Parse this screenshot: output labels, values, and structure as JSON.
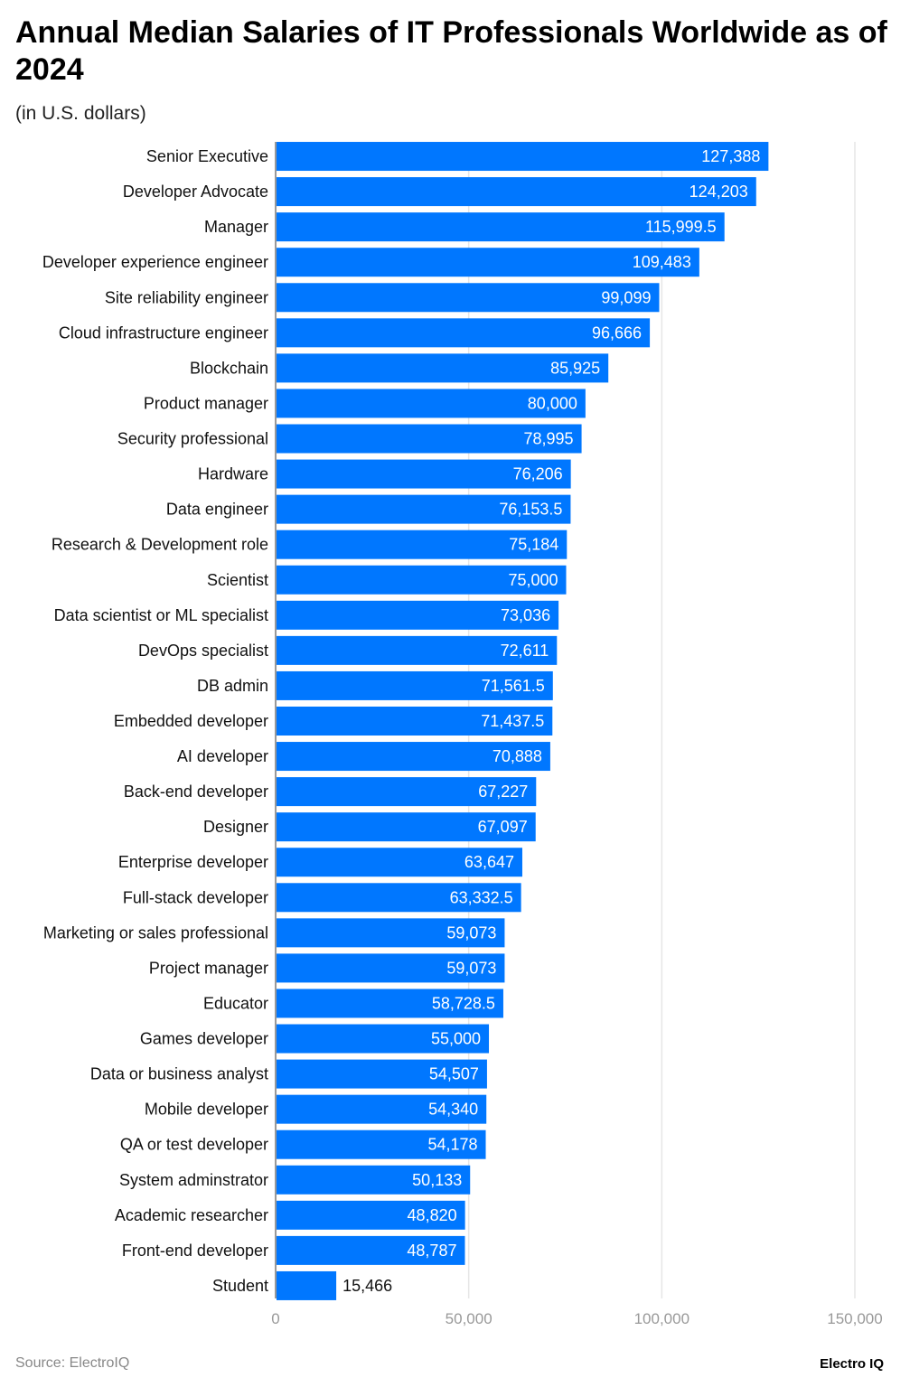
{
  "chart_data": {
    "type": "bar",
    "orientation": "horizontal",
    "title": "Annual Median Salaries of IT Professionals Worldwide as of 2024",
    "subtitle": "(in U.S. dollars)",
    "categories": [
      "Senior Executive",
      "Developer Advocate",
      "Manager",
      "Developer experience engineer",
      "Site reliability engineer",
      "Cloud infrastructure engineer",
      "Blockchain",
      "Product manager",
      "Security professional",
      "Hardware",
      "Data engineer",
      "Research & Development role",
      "Scientist",
      "Data scientist or ML specialist",
      "DevOps specialist",
      "DB admin",
      "Embedded developer",
      "AI developer",
      "Back-end developer",
      "Designer",
      "Enterprise developer",
      "Full-stack developer",
      "Marketing or sales professional",
      "Project manager",
      "Educator",
      "Games developer",
      "Data or business analyst",
      "Mobile developer",
      "QA or test developer",
      "System adminstrator",
      "Academic researcher",
      "Front-end developer",
      "Student"
    ],
    "values": [
      127388,
      124203,
      115999.5,
      109483,
      99099,
      96666,
      85925,
      80000,
      78995,
      76206,
      76153.5,
      75184,
      75000,
      73036,
      72611,
      71561.5,
      71437.5,
      70888,
      67227,
      67097,
      63647,
      63332.5,
      59073,
      59073,
      58728.5,
      55000,
      54507,
      54340,
      54178,
      50133,
      48820,
      48787,
      15466
    ],
    "xlim": [
      0,
      150000
    ],
    "xticks": [
      0,
      50000,
      100000,
      150000
    ],
    "xtick_labels": [
      "0",
      "50,000",
      "100,000",
      "150,000"
    ],
    "grid": true,
    "bar_color": "#0077ff",
    "source": "Source: ElectroIQ",
    "brand": "Electro IQ"
  }
}
